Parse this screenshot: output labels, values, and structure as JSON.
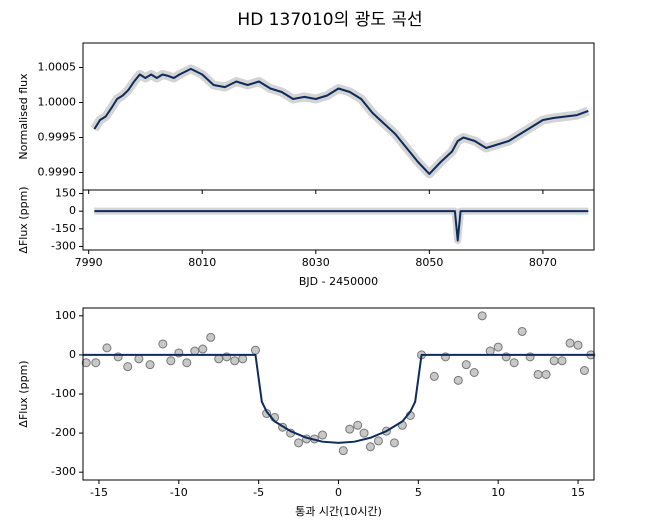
{
  "chart_data": [
    {
      "type": "line",
      "title": "HD 137010의 광도 곡선",
      "ylabel": "Normalised flux",
      "xlim": [
        7989,
        8079
      ],
      "ylim": [
        0.99875,
        1.00085
      ],
      "yticks": [
        {
          "value": 0.999,
          "label": "0.9990"
        },
        0.9995,
        {
          "value": 1,
          "label": "1.0000"
        },
        1.0005
      ],
      "series": [
        {
          "type": "line",
          "color": "#0d2c5c",
          "x": [
            7991,
            7992,
            7993,
            7994,
            7995,
            7996,
            7997,
            7998,
            7999,
            8000,
            8001,
            8002,
            8003,
            8004,
            8005,
            8006,
            8008,
            8010,
            8012,
            8014,
            8016,
            8018,
            8020,
            8022,
            8024,
            8026,
            8028,
            8030,
            8032,
            8034,
            8036,
            8038,
            8040,
            8042,
            8044,
            8046,
            8048,
            8050,
            8052,
            8054,
            8055,
            8056,
            8058,
            8060,
            8062,
            8064,
            8066,
            8068,
            8070,
            8072,
            8074,
            8076,
            8078
          ],
          "values": [
            0.99962,
            0.99975,
            0.9998,
            0.99992,
            1.00005,
            1.0001,
            1.00018,
            1.0003,
            1.0004,
            1.00035,
            1.0004,
            1.00035,
            1.0004,
            1.00038,
            1.00035,
            1.0004,
            1.00048,
            1.0004,
            1.00025,
            1.00022,
            1.0003,
            1.00025,
            1.0003,
            1.0002,
            1.00015,
            1.00005,
            1.00008,
            1.00005,
            1.0001,
            1.0002,
            1.00015,
            1.00005,
            0.99985,
            0.9997,
            0.99955,
            0.99935,
            0.99915,
            0.99898,
            0.99915,
            0.9993,
            0.99945,
            0.9995,
            0.99945,
            0.99935,
            0.9994,
            0.99945,
            0.99955,
            0.99965,
            0.99975,
            0.99978,
            0.9998,
            0.99982,
            0.99988
          ]
        }
      ]
    },
    {
      "type": "line",
      "ylabel": "ΔFlux (ppm)",
      "xlabel": "BJD - 2450000",
      "xlim": [
        7989,
        8079
      ],
      "ylim": [
        -330,
        180
      ],
      "xticks": [
        7990,
        8010,
        8030,
        8050,
        8070
      ],
      "yticks": [
        150,
        0,
        -150,
        -300
      ],
      "series": [
        {
          "type": "line",
          "color": "#0d2c5c",
          "x": [
            7991,
            8054.5,
            8054.8,
            8055,
            8055.2,
            8055.5,
            8078
          ],
          "values": [
            0,
            0,
            -150,
            -250,
            -150,
            0,
            0
          ]
        }
      ]
    },
    {
      "type": "scatter",
      "ylabel": "ΔFlux (ppm)",
      "xlabel": "통과 시간(10시간)",
      "xlim": [
        -16,
        16
      ],
      "ylim": [
        -320,
        120
      ],
      "xticks": [
        -15,
        -10,
        -5,
        0,
        5,
        10,
        15
      ],
      "yticks": [
        100,
        0,
        -100,
        -200,
        -300
      ],
      "series": [
        {
          "type": "scatter",
          "color": "#c8c8c8",
          "x": [
            -15.8,
            -15.2,
            -14.5,
            -13.8,
            -13.2,
            -12.5,
            -11.8,
            -11,
            -10.5,
            -10,
            -9.5,
            -9,
            -8.5,
            -8,
            -7.5,
            -7,
            -6.5,
            -6,
            -5.2,
            -4.5,
            -4,
            -3.5,
            -3,
            -2.5,
            -2,
            -1.5,
            -1,
            0.3,
            0.7,
            1.2,
            1.6,
            2,
            2.5,
            3,
            3.5,
            4,
            4.5,
            5.2,
            6,
            6.7,
            7.5,
            8,
            8.5,
            9,
            9.5,
            10,
            10.5,
            11,
            11.5,
            12,
            12.5,
            13,
            13.5,
            14,
            14.5,
            15,
            15.4,
            15.8
          ],
          "values": [
            -20,
            -20,
            18,
            -5,
            -30,
            -10,
            -25,
            28,
            -15,
            5,
            -20,
            10,
            15,
            45,
            -10,
            -5,
            -15,
            -10,
            12,
            -150,
            -160,
            -185,
            -200,
            -225,
            -215,
            -215,
            -205,
            -245,
            -190,
            -180,
            -200,
            -235,
            -220,
            -195,
            -225,
            -180,
            -155,
            0,
            -55,
            -5,
            -65,
            -25,
            -45,
            100,
            10,
            20,
            -5,
            -20,
            60,
            -5,
            -50,
            -50,
            -15,
            -15,
            30,
            25,
            -40,
            0
          ]
        },
        {
          "type": "line",
          "color": "#0d2c5c",
          "x": [
            -16,
            -5.2,
            -4.8,
            -4.5,
            -4,
            -3,
            -2,
            -1,
            0,
            1,
            2,
            3,
            4,
            4.5,
            4.8,
            5.2,
            16
          ],
          "values": [
            0,
            0,
            -120,
            -145,
            -170,
            -195,
            -212,
            -222,
            -225,
            -222,
            -212,
            -195,
            -170,
            -145,
            -120,
            0,
            0
          ]
        }
      ]
    }
  ]
}
